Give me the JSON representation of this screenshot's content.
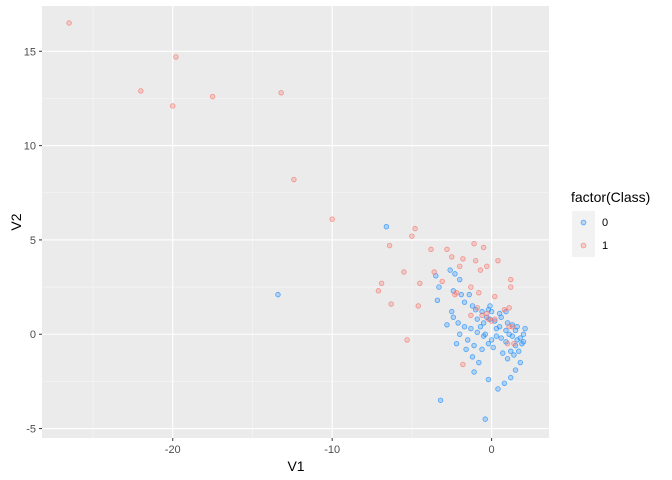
{
  "chart_data": {
    "type": "scatter",
    "title": "",
    "xlabel": "V1",
    "ylabel": "V2",
    "xlim": [
      -28.2,
      3.6
    ],
    "ylim": [
      -5.5,
      17.4
    ],
    "x_ticks": [
      -20,
      -10,
      0
    ],
    "x_tick_labels": [
      "-20",
      "-10",
      "0"
    ],
    "y_ticks": [
      -5,
      0,
      5,
      10,
      15
    ],
    "y_tick_labels": [
      "-5",
      "0",
      "5",
      "10",
      "15"
    ],
    "grid": true,
    "legend": {
      "title": "factor(Class)",
      "position": "right"
    },
    "series": [
      {
        "name": "0",
        "color": "#00BFC4",
        "display_color": "#1F8FFF",
        "points": [
          [
            -13.4,
            2.1
          ],
          [
            -6.6,
            5.7
          ],
          [
            -3.5,
            3.1
          ],
          [
            -3.3,
            2.5
          ],
          [
            -2.6,
            3.4
          ],
          [
            -2.3,
            3.2
          ],
          [
            -2.0,
            2.9
          ],
          [
            -2.4,
            2.3
          ],
          [
            -1.9,
            2.1
          ],
          [
            -1.4,
            2.1
          ],
          [
            -1.7,
            1.7
          ],
          [
            -1.2,
            1.5
          ],
          [
            -3.4,
            1.8
          ],
          [
            -1.0,
            1.3
          ],
          [
            -0.6,
            1.2
          ],
          [
            -0.2,
            1.3
          ],
          [
            0.0,
            1.2
          ],
          [
            -0.3,
            0.9
          ],
          [
            -0.9,
            0.8
          ],
          [
            -0.5,
            0.6
          ],
          [
            -0.1,
            0.8
          ],
          [
            0.2,
            0.7
          ],
          [
            0.5,
            0.4
          ],
          [
            0.9,
            0.2
          ],
          [
            1.1,
            0.0
          ],
          [
            1.3,
            -0.1
          ],
          [
            1.5,
            0.2
          ],
          [
            1.6,
            -0.3
          ],
          [
            1.8,
            -0.2
          ],
          [
            2.0,
            0.0
          ],
          [
            2.1,
            0.3
          ],
          [
            1.9,
            -0.5
          ],
          [
            1.5,
            -0.6
          ],
          [
            1.2,
            -0.9
          ],
          [
            0.9,
            -0.4
          ],
          [
            0.6,
            -0.2
          ],
          [
            0.3,
            -0.1
          ],
          [
            0.0,
            -0.3
          ],
          [
            -0.5,
            -0.1
          ],
          [
            -0.9,
            0.1
          ],
          [
            -1.3,
            0.3
          ],
          [
            -1.7,
            0.4
          ],
          [
            -2.1,
            0.6
          ],
          [
            -2.4,
            0.9
          ],
          [
            -2.0,
            0.0
          ],
          [
            -1.5,
            -0.3
          ],
          [
            -1.1,
            -0.6
          ],
          [
            -0.6,
            -0.8
          ],
          [
            -0.2,
            -0.5
          ],
          [
            0.1,
            -0.7
          ],
          [
            0.7,
            -1.0
          ],
          [
            1.0,
            -1.3
          ],
          [
            1.4,
            -1.1
          ],
          [
            1.7,
            -0.9
          ],
          [
            1.8,
            -1.5
          ],
          [
            1.5,
            -1.9
          ],
          [
            1.2,
            -2.3
          ],
          [
            0.8,
            -2.6
          ],
          [
            0.4,
            -2.9
          ],
          [
            -0.2,
            -2.4
          ],
          [
            -0.4,
            -4.5
          ],
          [
            -3.2,
            -3.5
          ],
          [
            -1.1,
            -2.0
          ],
          [
            -0.8,
            -1.5
          ],
          [
            -1.2,
            -1.2
          ],
          [
            -1.6,
            -0.8
          ],
          [
            -2.2,
            -0.5
          ],
          [
            -2.5,
            1.2
          ],
          [
            -2.8,
            0.5
          ],
          [
            -0.7,
            0.4
          ],
          [
            -0.4,
            0.0
          ],
          [
            0.3,
            0.3
          ],
          [
            0.6,
            0.9
          ],
          [
            1.0,
            0.6
          ],
          [
            1.3,
            0.5
          ],
          [
            1.6,
            0.4
          ],
          [
            2.0,
            -0.4
          ],
          [
            0.9,
            1.2
          ],
          [
            0.5,
            1.1
          ],
          [
            -0.1,
            1.5
          ]
        ]
      },
      {
        "name": "1",
        "color": "#F8766D",
        "display_color": "#F8766D",
        "points": [
          [
            -26.5,
            16.5
          ],
          [
            -22.0,
            12.9
          ],
          [
            -20.0,
            12.1
          ],
          [
            -19.8,
            14.7
          ],
          [
            -17.5,
            12.6
          ],
          [
            -13.2,
            12.8
          ],
          [
            -12.4,
            8.2
          ],
          [
            -10.0,
            6.1
          ],
          [
            -6.4,
            4.7
          ],
          [
            -5.0,
            5.2
          ],
          [
            -4.8,
            5.6
          ],
          [
            -4.5,
            2.7
          ],
          [
            -3.8,
            4.5
          ],
          [
            -3.6,
            3.3
          ],
          [
            -2.8,
            4.5
          ],
          [
            -2.5,
            4.1
          ],
          [
            -2.2,
            2.2
          ],
          [
            -2.0,
            3.6
          ],
          [
            -1.8,
            4.0
          ],
          [
            -1.1,
            4.8
          ],
          [
            -1.0,
            3.9
          ],
          [
            -0.7,
            3.4
          ],
          [
            -0.5,
            4.6
          ],
          [
            -0.3,
            3.6
          ],
          [
            0.4,
            3.9
          ],
          [
            1.2,
            2.9
          ],
          [
            1.2,
            2.5
          ],
          [
            0.2,
            2.0
          ],
          [
            -0.8,
            2.2
          ],
          [
            -1.3,
            2.5
          ],
          [
            -2.3,
            2.1
          ],
          [
            -3.1,
            2.8
          ],
          [
            -4.6,
            1.5
          ],
          [
            -5.5,
            3.3
          ],
          [
            -6.9,
            2.7
          ],
          [
            -7.1,
            2.3
          ],
          [
            -6.3,
            1.6
          ],
          [
            -5.3,
            -0.3
          ],
          [
            -1.8,
            -1.6
          ],
          [
            -1.3,
            1.0
          ],
          [
            -0.9,
            1.4
          ],
          [
            -0.6,
            1.0
          ],
          [
            -0.3,
            1.1
          ],
          [
            0.0,
            0.7
          ],
          [
            0.2,
            0.8
          ],
          [
            0.8,
            1.3
          ],
          [
            1.1,
            1.4
          ],
          [
            1.3,
            0.4
          ],
          [
            1.4,
            -0.5
          ],
          [
            1.0,
            -0.5
          ],
          [
            1.1,
            0.4
          ],
          [
            -0.2,
            0.8
          ]
        ]
      }
    ]
  }
}
